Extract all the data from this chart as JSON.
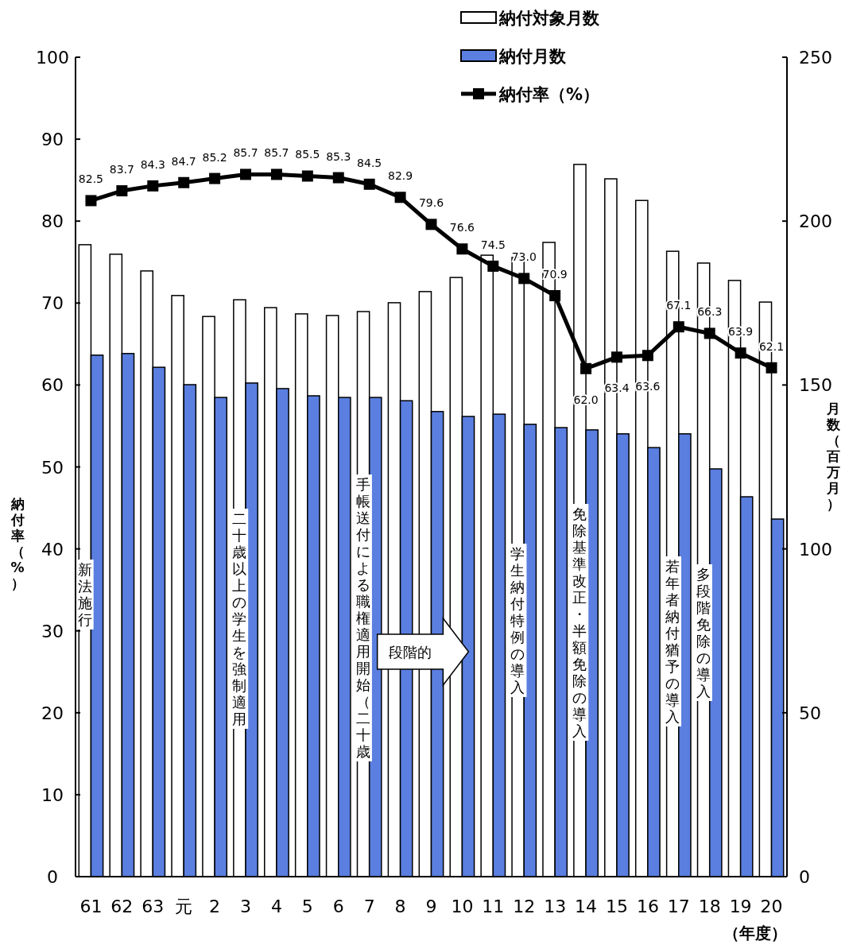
{
  "chart_data": {
    "type": "bar",
    "categories": [
      "61",
      "62",
      "63",
      "元",
      "2",
      "3",
      "4",
      "5",
      "6",
      "7",
      "8",
      "9",
      "10",
      "11",
      "12",
      "13",
      "14",
      "15",
      "16",
      "17",
      "18",
      "19",
      "20"
    ],
    "xlabel": "（年度）",
    "ylabel": "納付率（%）",
    "y2label": "月数（百万月）",
    "series": [
      {
        "name": "納付対象月数",
        "axis": "y2",
        "color": "#ffffff",
        "values": [
          192.8,
          189.9,
          184.8,
          177.3,
          170.9,
          176.0,
          173.6,
          171.7,
          171.2,
          172.4,
          175.1,
          178.5,
          182.8,
          189.6,
          188.9,
          193.5,
          217.3,
          212.9,
          206.3,
          190.8,
          187.2,
          181.9,
          175.3
        ]
      },
      {
        "name": "納付月数",
        "axis": "y2",
        "color": "#5a7fe0",
        "values": [
          159.1,
          159.6,
          155.4,
          150.1,
          146.2,
          150.6,
          148.9,
          146.7,
          146.2,
          146.2,
          145.2,
          141.9,
          140.4,
          141.1,
          138.0,
          137.0,
          136.3,
          135.1,
          130.9,
          135.1,
          124.4,
          115.9,
          109.1
        ]
      },
      {
        "name": "納付率（%）",
        "type": "line",
        "color": "#000000",
        "marker": "square",
        "value_labels": [
          "82.5",
          "83.7",
          "84.3",
          "84.7",
          "85.2",
          "85.7",
          "85.7",
          "85.5",
          "85.3",
          "84.5",
          "82.9",
          "79.6",
          "76.6",
          "74.5",
          "73.0",
          "70.9",
          "62.0",
          "63.4",
          "63.6",
          "67.1",
          "66.3",
          "63.9",
          "62.1"
        ],
        "values": [
          82.5,
          83.7,
          84.3,
          84.7,
          85.2,
          85.7,
          85.7,
          85.5,
          85.3,
          84.5,
          82.9,
          79.6,
          76.6,
          74.5,
          73.0,
          70.9,
          62.0,
          63.4,
          63.6,
          67.1,
          66.3,
          63.9,
          62.1
        ]
      }
    ],
    "ylim": [
      0,
      100
    ],
    "yticks": [
      0,
      10,
      20,
      30,
      40,
      50,
      60,
      70,
      80,
      90,
      100
    ],
    "y2lim": [
      0,
      250
    ],
    "y2ticks": [
      0,
      50,
      100,
      150,
      200,
      250
    ],
    "grid": false,
    "legend": "top right",
    "annotations": [
      "新法施行",
      "二十歳以上の学生を強制適用",
      "手帳送付による職権適用開始（二十歳",
      "段階的",
      "学生納付特例の導入",
      "免除基準改正・半額免除の導入",
      "若年者納付猶予の導入",
      "多段階免除の導入"
    ]
  }
}
